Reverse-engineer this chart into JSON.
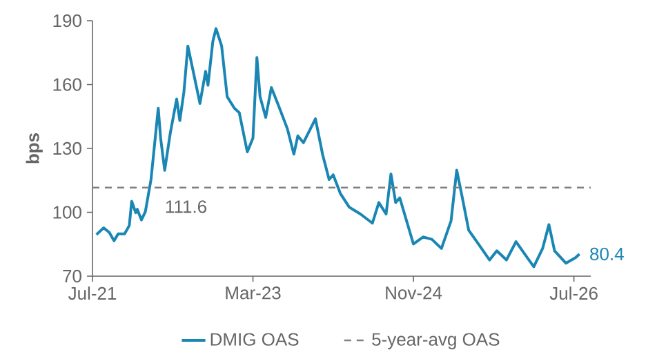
{
  "chart_data": {
    "type": "line",
    "ylabel": "bps",
    "x": [
      "2021-07-16",
      "2021-08-13",
      "2021-09-04",
      "2021-09-22",
      "2021-10-07",
      "2021-11-01",
      "2021-11-19",
      "2021-11-28",
      "2021-12-13",
      "2021-12-19",
      "2022-01-04",
      "2022-01-19",
      "2022-02-10",
      "2022-03-07",
      "2022-03-16",
      "2022-04-01",
      "2022-04-22",
      "2022-05-16",
      "2022-05-28",
      "2022-06-13",
      "2022-06-28",
      "2022-07-16",
      "2022-08-13",
      "2022-09-04",
      "2022-09-13",
      "2022-10-01",
      "2022-10-13",
      "2022-11-04",
      "2022-11-25",
      "2022-12-22",
      "2023-01-10",
      "2023-02-10",
      "2023-03-01",
      "2023-03-16",
      "2023-03-28",
      "2023-04-19",
      "2023-05-10",
      "2023-06-07",
      "2023-07-10",
      "2023-08-04",
      "2023-08-19",
      "2023-09-10",
      "2023-10-25",
      "2023-11-22",
      "2023-12-16",
      "2024-01-01",
      "2024-01-28",
      "2024-03-01",
      "2024-04-13",
      "2024-05-28",
      "2024-06-22",
      "2024-07-19",
      "2024-08-07",
      "2024-08-25",
      "2024-09-10",
      "2024-11-01",
      "2024-12-07",
      "2025-01-10",
      "2025-02-16",
      "2025-03-22",
      "2025-04-13",
      "2025-05-04",
      "2025-05-28",
      "2025-07-04",
      "2025-08-16",
      "2025-09-13",
      "2025-10-19",
      "2025-11-25",
      "2025-12-25",
      "2026-02-01",
      "2026-03-04",
      "2026-03-28",
      "2026-04-19",
      "2026-06-01",
      "2026-07-07",
      "2026-07-22"
    ],
    "series": [
      {
        "name": "DMIG OAS",
        "color": "#1a86b4",
        "values": [
          89.5,
          92.7,
          90.5,
          86.6,
          89.9,
          89.9,
          93.8,
          105.2,
          99.8,
          101.4,
          96.4,
          100.3,
          115.4,
          148.9,
          134.9,
          119.7,
          137,
          153.2,
          143.1,
          156.5,
          178.1,
          167.3,
          151.1,
          166.2,
          159.7,
          180.3,
          186.3,
          178.1,
          154.3,
          148.9,
          146.8,
          128.4,
          134.9,
          172.7,
          154.3,
          144.6,
          158.6,
          150,
          139.2,
          127.3,
          135.9,
          132.7,
          143.9,
          127,
          115.4,
          117.6,
          108.9,
          102.4,
          99.2,
          94.9,
          104.6,
          99.2,
          118,
          104.6,
          106.8,
          85.1,
          88.4,
          87.3,
          83,
          96,
          119.8,
          106.8,
          91.6,
          85.1,
          77.6,
          81.9,
          77.6,
          86.2,
          80.8,
          74.4,
          83,
          94.2,
          81.9,
          76.1,
          78.7,
          80.4
        ]
      }
    ],
    "ref_lines": [
      {
        "axis": "y",
        "value": 111.6,
        "label": "5-year-avg OAS",
        "color": "#808080",
        "line_style": "dashed"
      }
    ],
    "annotations": [
      {
        "text": "111.6",
        "x": "2022-06-21",
        "y": 111.6
      },
      {
        "text": "80.4",
        "x": "2026-07-22",
        "y": 80.4
      }
    ],
    "xlim": [
      "2021-07-01",
      "2026-09-04"
    ],
    "xticks": [
      {
        "value": "2021-07-01",
        "label": "Jul-21"
      },
      {
        "value": "2023-03-01",
        "label": "Mar-23"
      },
      {
        "value": "2024-11-01",
        "label": "Nov-24"
      },
      {
        "value": "2026-07-01",
        "label": "Jul-26"
      }
    ],
    "ylim": [
      70,
      190
    ],
    "yticks": [
      70,
      100,
      130,
      160,
      190
    ],
    "grid": false,
    "legend": "bottom",
    "marker": "none",
    "line_style": "solid"
  }
}
